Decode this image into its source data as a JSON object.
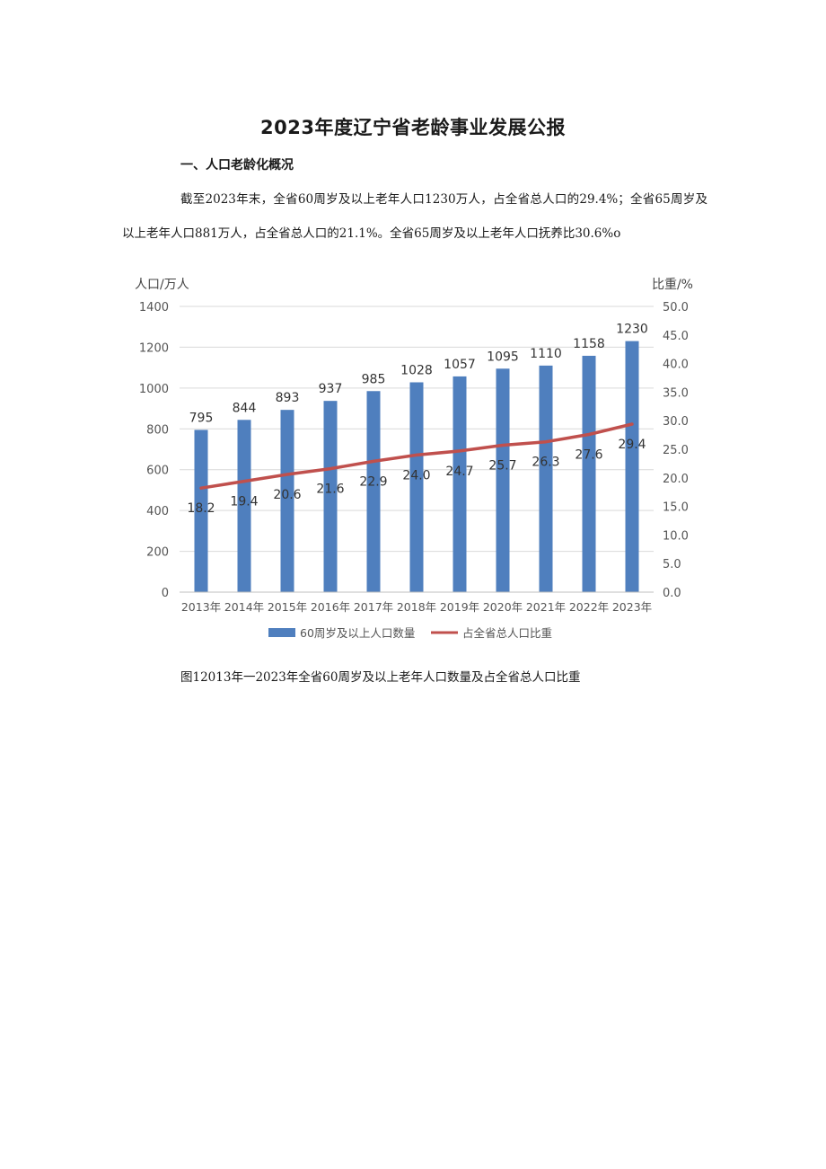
{
  "document": {
    "title": "2023年度辽宁省老龄事业发展公报",
    "section_heading": "一、人口老龄化概况",
    "paragraph": "截至2023年末，全省60周岁及以上老年人口1230万人，占全省总人口的29.4%；全省65周岁及以上老年人口881万人，占全省总人口的21.1%。全省65周岁及以上老年人口抚养比30.6%o",
    "figure_caption": "图12013年一2023年全省60周岁及以上老年人口数量及占全省总人口比重"
  },
  "chart_data": {
    "type": "bar",
    "categories": [
      "2013年",
      "2014年",
      "2015年",
      "2016年",
      "2017年",
      "2018年",
      "2019年",
      "2020年",
      "2021年",
      "2022年",
      "2023年"
    ],
    "ylabel_left": "人口/万人",
    "ylabel_right": "比重/%",
    "ylim_left": [
      0,
      1400
    ],
    "ylim_right": [
      0,
      50
    ],
    "yticks_left": [
      "0",
      "200",
      "400",
      "600",
      "800",
      "1000",
      "1200",
      "1400"
    ],
    "yticks_right": [
      "0.0",
      "5.0",
      "10.0",
      "15.0",
      "20.0",
      "25.0",
      "30.0",
      "35.0",
      "40.0",
      "45.0",
      "50.0"
    ],
    "grid": true,
    "legend_position": "bottom",
    "series": [
      {
        "name": "60周岁及以上人口数量",
        "type": "bar",
        "axis": "left",
        "color": "#4f7fbe",
        "values": [
          795,
          844,
          893,
          937,
          985,
          1028,
          1057,
          1095,
          1110,
          1158,
          1230
        ]
      },
      {
        "name": "占全省总人口比重",
        "type": "line",
        "axis": "right",
        "color": "#c0504d",
        "values": [
          18.2,
          19.4,
          20.6,
          21.6,
          22.9,
          24.0,
          24.7,
          25.7,
          26.3,
          27.6,
          29.4
        ]
      }
    ]
  }
}
